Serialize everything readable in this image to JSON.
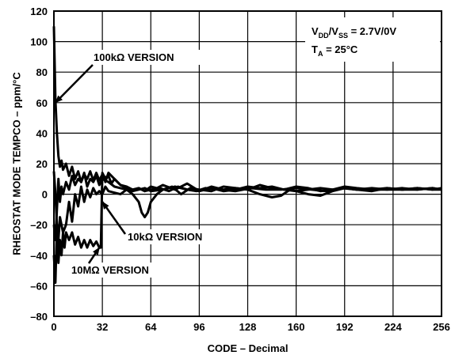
{
  "chart_data": {
    "type": "line",
    "title": "",
    "xlabel": "CODE – Decimal",
    "ylabel": "RHEOSTAT MODE TEMPCO – ppm/°C",
    "xlim": [
      0,
      256
    ],
    "ylim": [
      -80,
      120
    ],
    "x_ticks": [
      "0",
      "32",
      "64",
      "96",
      "128",
      "160",
      "192",
      "224",
      "256"
    ],
    "y_ticks": [
      "120",
      "100",
      "80",
      "60",
      "40",
      "20",
      "0",
      "–20",
      "–40",
      "–60",
      "–80"
    ],
    "grid": true,
    "legend": "none",
    "conditions": {
      "line1": {
        "main": "V",
        "sub1": "DD",
        "mid": "/V",
        "sub2": "SS",
        "rest": " = 2.7V/0V"
      },
      "line2": {
        "main": "T",
        "sub1": "A",
        "rest": " = 25°C"
      }
    },
    "annotations": [
      {
        "text": "100kΩ VERSION",
        "points_to": {
          "x": 1,
          "y": 60
        }
      },
      {
        "text": "10kΩ VERSION",
        "points_to": {
          "x": 32,
          "y": -5
        }
      },
      {
        "text": "10MΩ VERSION",
        "points_to": {
          "x": 30,
          "y": -35
        }
      }
    ],
    "series": [
      {
        "name": "100kΩ VERSION",
        "x": [
          0,
          1,
          2,
          3,
          4,
          5,
          6,
          8,
          10,
          12,
          14,
          16,
          18,
          20,
          22,
          24,
          26,
          28,
          30,
          32,
          34,
          36,
          38,
          40,
          44,
          48,
          52,
          56,
          60,
          64,
          70,
          76,
          82,
          88,
          94,
          100,
          110,
          120,
          130,
          140,
          150,
          160,
          170,
          180,
          190,
          200,
          210,
          220,
          230,
          240,
          250,
          256
        ],
        "y": [
          110,
          62,
          40,
          25,
          18,
          22,
          16,
          20,
          12,
          18,
          10,
          15,
          8,
          13,
          10,
          15,
          9,
          14,
          9,
          13,
          11,
          12,
          7,
          10,
          6,
          4,
          3,
          4,
          2,
          3,
          4,
          2,
          5,
          3,
          2,
          4,
          3,
          2,
          4,
          3,
          3,
          4,
          3,
          2,
          4,
          3,
          3,
          4,
          3,
          3,
          4,
          3
        ]
      },
      {
        "name": "10kΩ VERSION",
        "x": [
          0,
          1,
          2,
          3,
          4,
          6,
          8,
          10,
          12,
          14,
          16,
          18,
          20,
          22,
          24,
          26,
          28,
          30,
          31,
          32,
          34,
          36,
          40,
          44,
          48,
          52,
          56,
          58,
          60,
          62,
          64,
          68,
          72,
          78,
          84,
          90,
          96,
          104,
          112,
          120,
          128,
          136,
          144,
          150,
          156,
          160,
          168,
          176,
          184,
          192,
          200,
          210,
          220,
          230,
          240,
          250,
          256
        ],
        "y": [
          15,
          0,
          -20,
          -30,
          -15,
          -25,
          -20,
          -5,
          -18,
          0,
          -8,
          5,
          -5,
          3,
          -2,
          4,
          0,
          2,
          1,
          0,
          5,
          2,
          1,
          0,
          3,
          0,
          -5,
          -12,
          -15,
          -12,
          -5,
          0,
          3,
          5,
          0,
          4,
          3,
          2,
          5,
          4,
          3,
          0,
          -2,
          -1,
          3,
          2,
          0,
          -1,
          2,
          4,
          3,
          2,
          4,
          3,
          4,
          3,
          4
        ]
      },
      {
        "name": "10MΩ VERSION",
        "x": [
          0,
          1,
          2,
          3,
          4,
          5,
          6,
          7,
          8,
          10,
          12,
          14,
          16,
          18,
          20,
          22,
          24,
          26,
          28,
          30,
          31,
          32,
          33,
          34,
          36,
          40,
          44,
          48,
          52,
          56,
          60,
          64,
          68,
          72,
          80,
          88,
          96,
          104,
          112,
          120,
          128,
          136,
          144,
          152,
          160,
          168,
          176,
          184,
          192,
          200,
          210,
          220,
          230,
          240,
          250,
          256
        ],
        "y": [
          -40,
          -58,
          -20,
          -45,
          -30,
          -40,
          -25,
          -35,
          -25,
          -30,
          -25,
          -33,
          -28,
          -35,
          -30,
          -35,
          -30,
          -34,
          -31,
          -35,
          -35,
          14,
          12,
          8,
          14,
          10,
          6,
          5,
          3,
          4,
          2,
          5,
          4,
          6,
          3,
          7,
          2,
          5,
          3,
          4,
          3,
          6,
          4,
          3,
          5,
          4,
          2,
          3,
          5,
          4,
          3,
          3,
          4,
          3,
          4,
          3
        ]
      },
      {
        "name": "",
        "x": [
          0,
          1,
          2,
          3,
          4,
          5,
          6,
          8,
          10,
          12,
          14,
          16,
          18,
          20,
          22,
          24,
          26,
          28,
          30,
          32,
          36,
          40,
          44,
          48,
          52,
          56,
          60,
          64,
          72,
          80,
          88,
          96,
          104,
          112,
          120,
          128,
          136,
          144,
          152,
          160,
          168,
          176,
          184,
          192,
          200,
          210,
          220,
          230,
          240,
          250,
          256
        ],
        "y": [
          -20,
          -30,
          -10,
          10,
          -5,
          5,
          0,
          8,
          3,
          12,
          6,
          10,
          8,
          14,
          5,
          10,
          8,
          12,
          6,
          10,
          8,
          5,
          4,
          3,
          2,
          3,
          4,
          2,
          3,
          5,
          3,
          2,
          4,
          2,
          3,
          5,
          4,
          5,
          3,
          2,
          3,
          4,
          3,
          4,
          3,
          4,
          3,
          3,
          4,
          3,
          3
        ]
      }
    ]
  }
}
